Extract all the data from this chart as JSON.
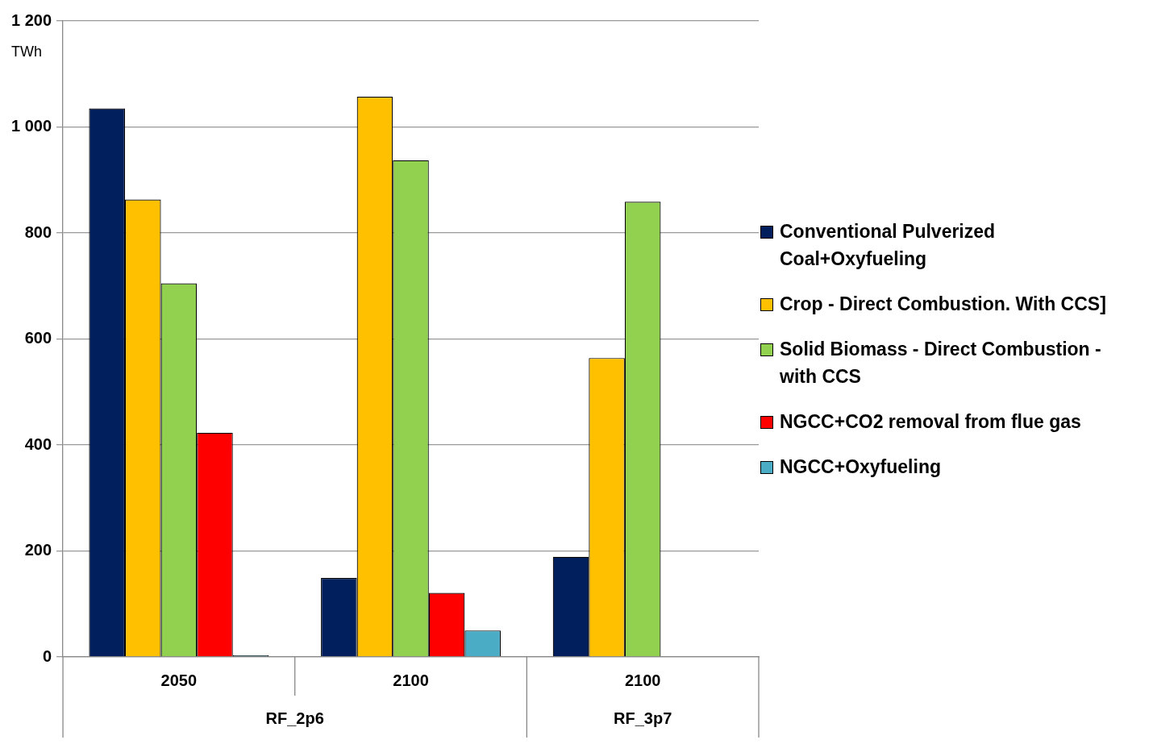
{
  "chart_data": {
    "type": "bar",
    "ylabel": "TWh",
    "categories": [
      "2050",
      "2100",
      "2100"
    ],
    "series": [
      {
        "name": "Conventional Pulverized Coal+Oxyfueling",
        "color": "#001f5c",
        "values": [
          1035,
          149,
          189
        ]
      },
      {
        "name": "Crop - Direct Combustion. With CCS]",
        "color": "#ffc000",
        "values": [
          863,
          1057,
          564
        ]
      },
      {
        "name": "Solid Biomass - Direct Combustion - with CCS",
        "color": "#92d050",
        "values": [
          705,
          937,
          859
        ]
      },
      {
        "name": "NGCC+CO2 removal from flue gas",
        "color": "#ff0000",
        "values": [
          423,
          121,
          null
        ]
      },
      {
        "name": "NGCC+Oxyfueling",
        "color": "#4bacc6",
        "values": [
          3,
          50,
          null
        ]
      }
    ],
    "annotations": [
      "RF_2p6",
      "RF_3p7"
    ],
    "ylim": [
      0,
      1200
    ],
    "yticks": [
      {
        "value": 0,
        "label": "0"
      },
      {
        "value": 200,
        "label": "200"
      },
      {
        "value": 400,
        "label": "400"
      },
      {
        "value": 600,
        "label": "600"
      },
      {
        "value": 800,
        "label": "800"
      },
      {
        "value": 1000,
        "label": "1 000"
      },
      {
        "value": 1200,
        "label": "1 200"
      }
    ],
    "grid": "y",
    "legend": "right"
  }
}
